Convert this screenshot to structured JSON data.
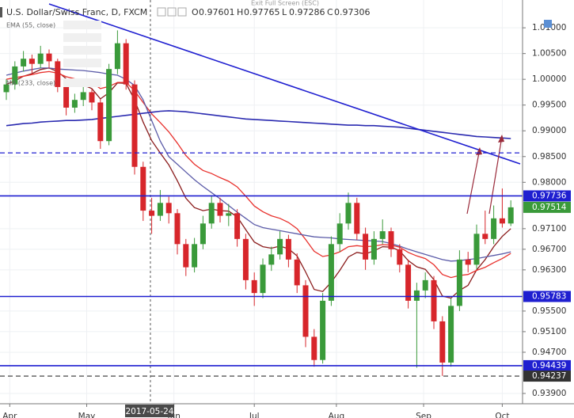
{
  "header": {
    "title": "U.S. Dollar/Swiss Franc, D, FXCM",
    "ohlc": [
      {
        "key": "O",
        "value": 0.97601
      },
      {
        "key": "H",
        "value": 0.97765
      },
      {
        "key": "L",
        "value": 0.97286
      },
      {
        "key": "C",
        "value": 0.97306
      }
    ],
    "exit_hint": "Exit Full Screen (ESC)"
  },
  "chart_data": {
    "type": "candlestick",
    "ylim": [
      0.937,
      1.0154
    ],
    "yticks": [
      {
        "value": 1.01,
        "label": "1.01000"
      },
      {
        "value": 1.005,
        "label": "1.00500"
      },
      {
        "value": 1.0,
        "label": "1.00000"
      },
      {
        "value": 0.995,
        "label": "0.99500"
      },
      {
        "value": 0.99,
        "label": "0.99000"
      },
      {
        "value": 0.985,
        "label": "0.98500"
      },
      {
        "value": 0.98,
        "label": "0.98000"
      },
      {
        "value": 0.971,
        "label": "0.97100"
      },
      {
        "value": 0.967,
        "label": "0.96700"
      },
      {
        "value": 0.963,
        "label": "0.96300"
      },
      {
        "value": 0.955,
        "label": "0.95500"
      },
      {
        "value": 0.951,
        "label": "0.95100"
      },
      {
        "value": 0.947,
        "label": "0.94700"
      },
      {
        "value": 0.939,
        "label": "0.93900"
      }
    ],
    "xticks": [
      {
        "value": 0.4,
        "label": "Apr"
      },
      {
        "value": 9.4,
        "label": "May"
      },
      {
        "value": 19.6,
        "label": "Jun"
      },
      {
        "value": 29,
        "label": "Jul"
      },
      {
        "value": 38.6,
        "label": "Aug"
      },
      {
        "value": 48.8,
        "label": "Sep"
      },
      {
        "value": 58,
        "label": "Oct"
      }
    ],
    "crosshair": {
      "x": 16.85,
      "label": "2017-05-24"
    },
    "grid": true,
    "candles": {
      "up_color": "#3a9a3a",
      "down_color": "#d7262b",
      "open": [
        0.9975,
        0.999,
        1.0025,
        1.004,
        1.003,
        1.005,
        1.0035,
        0.9985,
        0.9945,
        0.996,
        0.9975,
        0.9955,
        0.988,
        1.002,
        1.007,
        0.999,
        0.983,
        0.9745,
        0.9735,
        0.976,
        0.974,
        0.968,
        0.9635,
        0.968,
        0.972,
        0.976,
        0.9735,
        0.974,
        0.969,
        0.961,
        0.9585,
        0.964,
        0.966,
        0.969,
        0.965,
        0.96,
        0.95,
        0.9455,
        0.957,
        0.968,
        0.972,
        0.976,
        0.97,
        0.965,
        0.969,
        0.9705,
        0.967,
        0.964,
        0.957,
        0.959,
        0.961,
        0.953,
        0.945,
        0.956,
        0.965,
        0.964,
        0.97,
        0.969,
        0.973,
        0.972
      ],
      "high": [
        1.0,
        1.0035,
        1.0055,
        1.0048,
        1.0065,
        1.0058,
        1.004,
        0.9995,
        0.9972,
        0.999,
        0.9982,
        0.9962,
        1.003,
        1.0095,
        1.0078,
        0.9998,
        0.984,
        0.977,
        0.9785,
        0.9772,
        0.9748,
        0.969,
        0.9692,
        0.9735,
        0.9775,
        0.977,
        0.9758,
        0.9748,
        0.97,
        0.9625,
        0.9652,
        0.9675,
        0.9705,
        0.9698,
        0.9662,
        0.961,
        0.9515,
        0.9585,
        0.9695,
        0.974,
        0.978,
        0.977,
        0.9712,
        0.9705,
        0.9728,
        0.9712,
        0.968,
        0.965,
        0.9605,
        0.9625,
        0.9618,
        0.954,
        0.9575,
        0.9668,
        0.9665,
        0.9718,
        0.9745,
        0.9755,
        0.9788,
        0.9765
      ],
      "low": [
        0.996,
        0.998,
        1.0015,
        1.001,
        1.0022,
        1.002,
        0.9975,
        0.993,
        0.9935,
        0.9948,
        0.994,
        0.9865,
        0.9872,
        1.001,
        0.998,
        0.9815,
        0.9725,
        0.97,
        0.9725,
        0.972,
        0.966,
        0.9618,
        0.9625,
        0.967,
        0.971,
        0.9722,
        0.9715,
        0.9675,
        0.9592,
        0.956,
        0.9575,
        0.9628,
        0.965,
        0.9635,
        0.9585,
        0.948,
        0.9442,
        0.9448,
        0.956,
        0.9665,
        0.9708,
        0.9688,
        0.963,
        0.964,
        0.968,
        0.9655,
        0.9625,
        0.9555,
        0.944,
        0.9575,
        0.9515,
        0.9424,
        0.9442,
        0.955,
        0.9625,
        0.9632,
        0.968,
        0.968,
        0.9712,
        0.9715
      ],
      "close": [
        0.999,
        1.0025,
        1.004,
        1.003,
        1.005,
        1.0035,
        0.9985,
        0.9945,
        0.996,
        0.9975,
        0.9955,
        0.988,
        1.002,
        1.007,
        0.999,
        0.983,
        0.9745,
        0.9735,
        0.976,
        0.974,
        0.968,
        0.9635,
        0.968,
        0.972,
        0.976,
        0.9735,
        0.974,
        0.969,
        0.961,
        0.9585,
        0.964,
        0.966,
        0.969,
        0.965,
        0.96,
        0.95,
        0.9455,
        0.957,
        0.968,
        0.972,
        0.976,
        0.97,
        0.965,
        0.969,
        0.9705,
        0.967,
        0.964,
        0.957,
        0.959,
        0.961,
        0.953,
        0.945,
        0.956,
        0.965,
        0.964,
        0.97,
        0.969,
        0.973,
        0.972,
        0.97514
      ]
    },
    "series": [
      {
        "color": "#8b1c1c",
        "values": [
          0.999,
          0.9997,
          1.0006,
          1.0011,
          1.0019,
          1.0022,
          1.0015,
          1.0001,
          0.9993,
          0.9989,
          0.9982,
          0.9962,
          0.9974,
          0.9993,
          0.9992,
          0.996,
          0.9917,
          0.9881,
          0.9857,
          0.9834,
          0.9803,
          0.9769,
          0.9751,
          0.9745,
          0.9748,
          0.9745,
          0.9744,
          0.9733,
          0.9708,
          0.9684,
          0.9675,
          0.9672,
          0.9676,
          0.9671,
          0.9657,
          0.9626,
          0.9592,
          0.9588,
          0.9606,
          0.9629,
          0.9655,
          0.9664,
          0.9661,
          0.9667,
          0.9675,
          0.9674,
          0.9667,
          0.9648,
          0.9636,
          0.9631,
          0.9611,
          0.9579,
          0.9575,
          0.959,
          0.96,
          0.963,
          0.965,
          0.9675,
          0.9695,
          0.971
        ]
      },
      {
        "name": "EMA (55, close)",
        "color": "#e8302c",
        "values": [
          1.0,
          1.0003,
          1.0006,
          1.0009,
          1.0013,
          1.0015,
          1.0012,
          1.0005,
          1.0001,
          0.9998,
          0.9994,
          0.9982,
          0.9986,
          0.9994,
          0.9994,
          0.9978,
          0.9955,
          0.9933,
          0.9916,
          0.9898,
          0.9876,
          0.9852,
          0.9835,
          0.9823,
          0.9817,
          0.9809,
          0.9802,
          0.9791,
          0.9773,
          0.9754,
          0.9743,
          0.9735,
          0.973,
          0.9722,
          0.971,
          0.9689,
          0.9666,
          0.9656,
          0.9659,
          0.9665,
          0.9675,
          0.9677,
          0.9675,
          0.9676,
          0.9679,
          0.9678,
          0.9674,
          0.9664,
          0.9657,
          0.9652,
          0.964,
          0.9621,
          0.9615,
          0.9619,
          0.9621,
          0.9629,
          0.9635,
          0.9644,
          0.9652,
          0.9662
        ]
      },
      {
        "color": "#5b5ba8",
        "values": [
          1.0008,
          1.0012,
          1.0016,
          1.0019,
          1.0022,
          1.0022,
          1.002,
          1.0019,
          1.0018,
          1.0017,
          1.0015,
          1.0013,
          1.001,
          1.0008,
          1.0,
          0.9988,
          0.996,
          0.992,
          0.988,
          0.985,
          0.9835,
          0.982,
          0.9805,
          0.9792,
          0.978,
          0.9768,
          0.9755,
          0.9742,
          0.973,
          0.9718,
          0.9712,
          0.9709,
          0.9706,
          0.9703,
          0.97,
          0.9697,
          0.9694,
          0.9693,
          0.9692,
          0.969,
          0.9689,
          0.9688,
          0.9687,
          0.9686,
          0.9685,
          0.9681,
          0.9676,
          0.967,
          0.9665,
          0.966,
          0.9655,
          0.965,
          0.9647,
          0.9648,
          0.965,
          0.9652,
          0.9655,
          0.9658,
          0.9661,
          0.9665
        ]
      },
      {
        "name": "MA (233, close)",
        "color": "#2a2ab0",
        "values": [
          0.991,
          0.9912,
          0.9914,
          0.9915,
          0.9917,
          0.9918,
          0.9919,
          0.992,
          0.992,
          0.9921,
          0.9922,
          0.9924,
          0.9926,
          0.9928,
          0.993,
          0.9932,
          0.9934,
          0.9936,
          0.9938,
          0.9939,
          0.9938,
          0.9937,
          0.9935,
          0.9933,
          0.9931,
          0.9929,
          0.9927,
          0.9925,
          0.9923,
          0.9922,
          0.9921,
          0.992,
          0.9919,
          0.9918,
          0.9917,
          0.9916,
          0.9915,
          0.9914,
          0.9913,
          0.9912,
          0.9911,
          0.9911,
          0.991,
          0.991,
          0.9909,
          0.9908,
          0.9907,
          0.9905,
          0.9903,
          0.9901,
          0.9899,
          0.9897,
          0.9895,
          0.9893,
          0.9891,
          0.9889,
          0.9888,
          0.9887,
          0.9886,
          0.9885
        ]
      }
    ],
    "levels": [
      {
        "value": 0.98571,
        "color": "#1f1fd0",
        "dashed": true
      },
      {
        "value": 0.97736,
        "color": "#1f1fd0",
        "dashed": false,
        "marker": true
      },
      {
        "value": 0.95783,
        "color": "#1f1fd0",
        "dashed": false,
        "marker": true
      },
      {
        "value": 0.94439,
        "color": "#1f1fd0",
        "dashed": false,
        "marker": true
      },
      {
        "value": 0.94237,
        "color": "#333333",
        "dashed": true,
        "marker": true
      }
    ]
  }
}
